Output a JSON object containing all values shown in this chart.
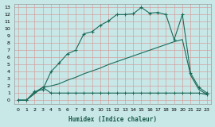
{
  "xlabel": "Humidex (Indice chaleur)",
  "bg_color": "#c8e8e8",
  "grid_color": "#d4a0a0",
  "line_color": "#1a6b5a",
  "xlim": [
    -0.5,
    23.5
  ],
  "ylim": [
    -0.5,
    13.5
  ],
  "xticks": [
    0,
    1,
    2,
    3,
    4,
    5,
    6,
    7,
    8,
    9,
    10,
    11,
    12,
    13,
    14,
    15,
    16,
    17,
    18,
    19,
    20,
    21,
    22,
    23
  ],
  "yticks": [
    0,
    1,
    2,
    3,
    4,
    5,
    6,
    7,
    8,
    9,
    10,
    11,
    12,
    13
  ],
  "line1_x": [
    0,
    1,
    2,
    3,
    4,
    5,
    6,
    7,
    8,
    9,
    10,
    11,
    12,
    13,
    14,
    15,
    16,
    17,
    18,
    19,
    20,
    21,
    22,
    23
  ],
  "line1_y": [
    0,
    0,
    1.2,
    1.5,
    4.0,
    5.2,
    6.5,
    7.0,
    9.3,
    9.6,
    10.5,
    11.1,
    12.0,
    12.0,
    12.1,
    13.0,
    12.2,
    12.3,
    12.0,
    8.5,
    12.0,
    3.8,
    1.8,
    1.0
  ],
  "line2_x": [
    0,
    1,
    2,
    3,
    4,
    5,
    6,
    7,
    8,
    9,
    10,
    11,
    12,
    13,
    14,
    15,
    16,
    17,
    18,
    19,
    20,
    21,
    22,
    23
  ],
  "line2_y": [
    0,
    0,
    0.9,
    1.8,
    2.0,
    2.3,
    2.8,
    3.2,
    3.7,
    4.1,
    4.5,
    5.0,
    5.4,
    5.8,
    6.2,
    6.6,
    7.0,
    7.4,
    7.8,
    8.2,
    8.5,
    3.5,
    1.5,
    0.8
  ],
  "line3_x": [
    0,
    1,
    2,
    3,
    4,
    5,
    6,
    7,
    8,
    9,
    10,
    11,
    12,
    13,
    14,
    15,
    16,
    17,
    18,
    19,
    20,
    21,
    22,
    23
  ],
  "line3_y": [
    0,
    0,
    1.1,
    1.8,
    1.0,
    1.0,
    1.0,
    1.0,
    1.0,
    1.0,
    1.0,
    1.0,
    1.0,
    1.0,
    1.0,
    1.0,
    1.0,
    1.0,
    1.0,
    1.0,
    1.0,
    1.0,
    1.0,
    0.8
  ]
}
